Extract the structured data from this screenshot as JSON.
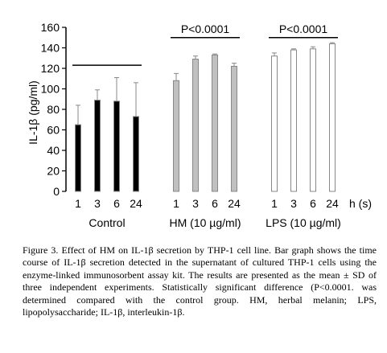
{
  "chart_data": {
    "type": "bar",
    "ylabel": "IL-1β (pg/ml)",
    "ylim": [
      0,
      160
    ],
    "yticks": [
      0,
      20,
      40,
      60,
      80,
      100,
      120,
      140,
      160
    ],
    "x_unit_label": "h (s)",
    "groups": [
      {
        "name": "Control",
        "categories": [
          "1",
          "3",
          "6",
          "24"
        ],
        "values": [
          65,
          89,
          88,
          73
        ],
        "errors": [
          19,
          10,
          23,
          33
        ],
        "color": "#000000"
      },
      {
        "name": "HM (10 µg/ml)",
        "categories": [
          "1",
          "3",
          "6",
          "24"
        ],
        "values": [
          108,
          129,
          133,
          122
        ],
        "errors": [
          7,
          3,
          1,
          3
        ],
        "color": "#c0c0c0"
      },
      {
        "name": "LPS (10 µg/ml)",
        "categories": [
          "1",
          "3",
          "6",
          "24"
        ],
        "values": [
          132,
          138,
          139,
          144
        ],
        "errors": [
          3,
          1,
          2,
          1
        ],
        "color": "#ffffff"
      }
    ],
    "annotations": [
      {
        "text": "P<0.0001",
        "group_index": 1
      },
      {
        "text": "P<0.0001",
        "group_index": 2
      }
    ],
    "control_line_value": 123,
    "grid": false
  },
  "caption": "Figure 3. Effect of HM on IL-1β secretion by THP-1 cell line. Bar graph shows the time course of IL-1β secretion detected in the supernatant of cultured THP-1 cells using the enzyme-linked immunosorbent assay kit. The results are presented as the mean ± SD of three independent experiments. Statistically significant difference (P<0.0001. was determined compared with the control group. HM, herbal melanin; LPS, lipopolysaccharide; IL-1β, interleukin-1β."
}
